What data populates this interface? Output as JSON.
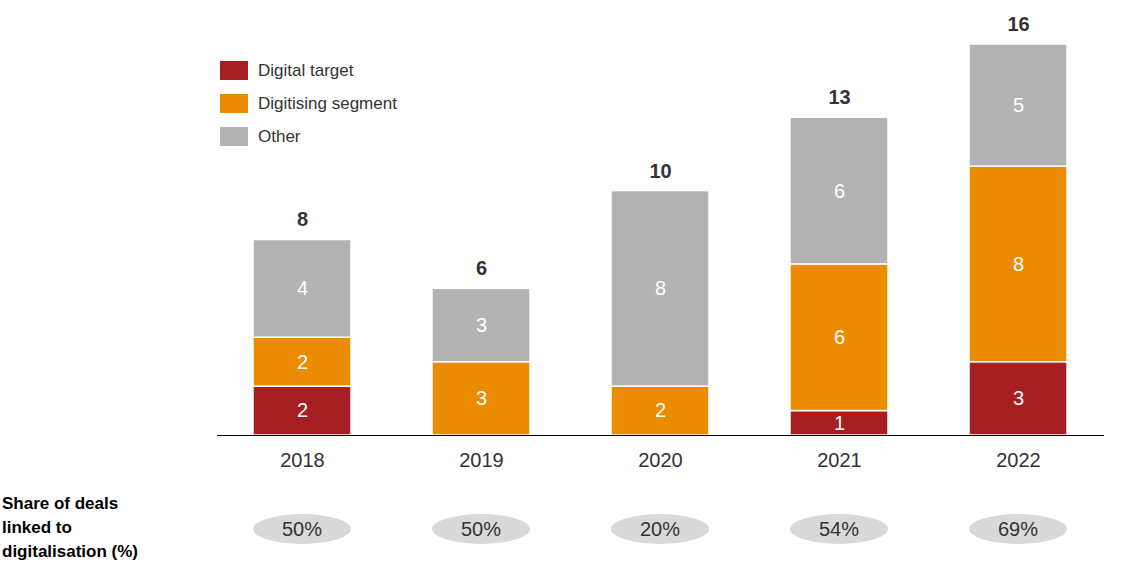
{
  "chart_data": {
    "type": "bar",
    "stacked": true,
    "data_labels": true,
    "tick_labels": "x",
    "legend": "top-left",
    "categories": [
      "2018",
      "2019",
      "2020",
      "2021",
      "2022"
    ],
    "series": [
      {
        "name": "Digital target",
        "color": "#a51e22",
        "values": [
          2,
          0,
          0,
          1,
          3
        ]
      },
      {
        "name": "Digitising segment",
        "color": "#eb8c00",
        "values": [
          2,
          3,
          2,
          6,
          8
        ]
      },
      {
        "name": "Other",
        "color": "#b3b3b3",
        "values": [
          4,
          3,
          8,
          6,
          5
        ]
      }
    ],
    "totals": [
      8,
      6,
      10,
      13,
      16
    ],
    "ylim": [
      0,
      16
    ],
    "share_label": "Share of deals linked to digitalisation (%)",
    "share_values": [
      50,
      50,
      20,
      54,
      69
    ],
    "share_value_labels": [
      "50%",
      "50%",
      "20%",
      "54%",
      "69%"
    ]
  }
}
